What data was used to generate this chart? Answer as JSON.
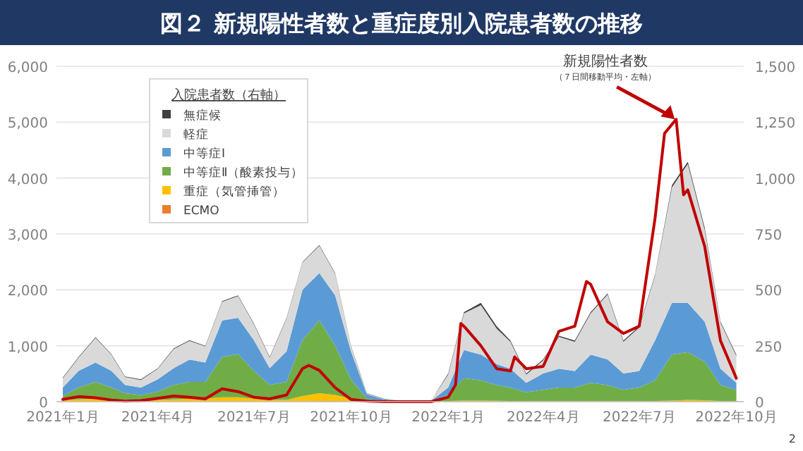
{
  "chart_data": {
    "type": "area",
    "stacked": true,
    "title": "図２ 新規陽性者数と重症度別入院患者数の推移",
    "legend_title": "入院患者数（右軸）",
    "legend": "top left",
    "grid": "y",
    "x": [
      "2021-01-01",
      "2021-01-16",
      "2021-02-01",
      "2021-02-16",
      "2021-03-01",
      "2021-03-16",
      "2021-04-01",
      "2021-04-16",
      "2021-05-01",
      "2021-05-16",
      "2021-06-01",
      "2021-06-16",
      "2021-07-01",
      "2021-07-16",
      "2021-08-01",
      "2021-08-16",
      "2021-09-01",
      "2021-09-16",
      "2021-10-01",
      "2021-10-16",
      "2021-11-01",
      "2021-11-16",
      "2021-12-01",
      "2021-12-16",
      "2022-01-01",
      "2022-01-16",
      "2022-02-01",
      "2022-02-16",
      "2022-03-01",
      "2022-03-16",
      "2022-04-01",
      "2022-04-16",
      "2022-05-01",
      "2022-05-16",
      "2022-06-01",
      "2022-06-16",
      "2022-07-01",
      "2022-07-16",
      "2022-08-01",
      "2022-08-16",
      "2022-09-01",
      "2022-09-16",
      "2022-10-01"
    ],
    "xlim": [
      "2020-12-26",
      "2022-10-08"
    ],
    "xticks": [
      {
        "value": "2021-01-01",
        "label": "2021年1月"
      },
      {
        "value": "2021-04-01",
        "label": "2021年4月"
      },
      {
        "value": "2021-07-01",
        "label": "2021年7月"
      },
      {
        "value": "2021-10-01",
        "label": "2021年10月"
      },
      {
        "value": "2022-01-01",
        "label": "2022年1月"
      },
      {
        "value": "2022-04-01",
        "label": "2022年4月"
      },
      {
        "value": "2022-07-01",
        "label": "2022年7月"
      },
      {
        "value": "2022-10-01",
        "label": "2022年10月"
      }
    ],
    "ylim": [
      0,
      6000
    ],
    "yticks": [
      {
        "value": 0,
        "label": "0"
      },
      {
        "value": 1000,
        "label": "1,000"
      },
      {
        "value": 2000,
        "label": "2,000"
      },
      {
        "value": 3000,
        "label": "3,000"
      },
      {
        "value": 4000,
        "label": "4,000"
      },
      {
        "value": 5000,
        "label": "5,000"
      },
      {
        "value": 6000,
        "label": "6,000"
      }
    ],
    "y2lim": [
      0,
      1500
    ],
    "y2ticks": [
      {
        "value": 0,
        "label": "0"
      },
      {
        "value": 250,
        "label": "250"
      },
      {
        "value": 500,
        "label": "500"
      },
      {
        "value": 750,
        "label": "750"
      },
      {
        "value": 1000,
        "label": "1,000"
      },
      {
        "value": 1250,
        "label": "1,250"
      },
      {
        "value": 1500,
        "label": "1,500"
      }
    ],
    "series": [
      {
        "name": "ECMO",
        "color": "#ed7d31",
        "axis": "y2",
        "values": [
          1,
          1,
          1,
          1,
          1,
          1,
          1,
          1,
          1,
          1,
          1,
          1,
          1,
          1,
          1,
          1,
          2,
          2,
          1,
          0,
          0,
          0,
          0,
          0,
          0,
          0,
          0,
          0,
          0,
          0,
          0,
          0,
          0,
          0,
          0,
          0,
          0,
          0,
          0,
          0,
          0,
          0,
          0
        ]
      },
      {
        "name": "重症（気管挿管）",
        "color": "#ffc000",
        "axis": "y2",
        "values": [
          7,
          9,
          12,
          9,
          7,
          5,
          7,
          9,
          12,
          12,
          19,
          19,
          12,
          7,
          7,
          24,
          36,
          28,
          12,
          3,
          1,
          1,
          0,
          0,
          3,
          5,
          5,
          4,
          3,
          2,
          2,
          2,
          2,
          2,
          2,
          2,
          2,
          3,
          5,
          8,
          6,
          3,
          2
        ]
      },
      {
        "name": "中等症Ⅱ（酸素投与）",
        "color": "#70ad47",
        "axis": "y2",
        "values": [
          17,
          53,
          75,
          53,
          30,
          24,
          37,
          65,
          75,
          75,
          180,
          193,
          125,
          67,
          80,
          250,
          325,
          220,
          87,
          10,
          3,
          1,
          1,
          1,
          29,
          100,
          90,
          70,
          60,
          40,
          51,
          61,
          61,
          82,
          72,
          51,
          61,
          92,
          205,
          213,
          173,
          71,
          51
        ]
      },
      {
        "name": "中等症Ⅰ",
        "color": "#5b9bd5",
        "axis": "y2",
        "values": [
          38,
          75,
          87,
          75,
          37,
          33,
          55,
          75,
          100,
          87,
          163,
          162,
          137,
          75,
          137,
          225,
          212,
          225,
          125,
          20,
          6,
          2,
          1,
          3,
          31,
          126,
          115,
          94,
          84,
          42,
          73,
          84,
          74,
          126,
          115,
          73,
          74,
          179,
          232,
          221,
          179,
          73,
          31
        ]
      },
      {
        "name": "軽症",
        "color": "#d9d9d9",
        "axis": "y2",
        "values": [
          42,
          59,
          110,
          72,
          35,
          34,
          47,
          85,
          84,
          72,
          84,
          97,
          72,
          47,
          147,
          122,
          122,
          97,
          22,
          3,
          2,
          1,
          1,
          1,
          58,
          164,
          222,
          159,
          121,
          37,
          58,
          143,
          131,
          185,
          290,
          142,
          195,
          289,
          516,
          621,
          410,
          206,
          121
        ]
      },
      {
        "name": "無症候",
        "color": "#404040",
        "axis": "y2",
        "values": [
          3,
          3,
          3,
          3,
          3,
          3,
          3,
          3,
          3,
          3,
          3,
          3,
          3,
          3,
          3,
          3,
          3,
          3,
          3,
          2,
          1,
          0,
          0,
          0,
          5,
          5,
          10,
          10,
          5,
          5,
          5,
          5,
          5,
          5,
          5,
          5,
          5,
          5,
          10,
          10,
          10,
          5,
          5
        ]
      },
      {
        "name": "新規陽性者数",
        "type": "line",
        "color": "#c00000",
        "axis": "y",
        "x": [
          "2021-01-01",
          "2021-01-16",
          "2021-02-01",
          "2021-02-16",
          "2021-03-01",
          "2021-03-16",
          "2021-04-01",
          "2021-04-16",
          "2021-05-01",
          "2021-05-16",
          "2021-06-01",
          "2021-06-16",
          "2021-07-01",
          "2021-07-16",
          "2021-08-01",
          "2021-08-16",
          "2021-08-22",
          "2021-09-01",
          "2021-09-16",
          "2021-10-01",
          "2021-10-16",
          "2021-11-01",
          "2021-11-16",
          "2021-12-01",
          "2021-12-16",
          "2022-01-01",
          "2022-01-08",
          "2022-01-13",
          "2022-01-16",
          "2022-02-01",
          "2022-02-16",
          "2022-03-01",
          "2022-03-05",
          "2022-03-16",
          "2022-04-01",
          "2022-04-16",
          "2022-05-01",
          "2022-05-12",
          "2022-05-16",
          "2022-06-01",
          "2022-06-16",
          "2022-07-01",
          "2022-07-16",
          "2022-07-25",
          "2022-08-05",
          "2022-08-12",
          "2022-08-16",
          "2022-09-01",
          "2022-09-16",
          "2022-10-01"
        ],
        "values": [
          40,
          90,
          70,
          30,
          10,
          20,
          60,
          100,
          80,
          50,
          230,
          180,
          80,
          50,
          120,
          590,
          650,
          560,
          250,
          40,
          10,
          0,
          0,
          0,
          0,
          80,
          300,
          1400,
          1350,
          1000,
          590,
          550,
          800,
          590,
          630,
          1260,
          1350,
          2150,
          2100,
          1430,
          1220,
          1350,
          3280,
          4800,
          5050,
          3700,
          3790,
          2780,
          1090,
          420
        ]
      }
    ],
    "annotations": [
      {
        "text": "（７日間移動平均・左軸）",
        "x": "2022-08-05",
        "y": 5050
      },
      "2"
    ]
  }
}
